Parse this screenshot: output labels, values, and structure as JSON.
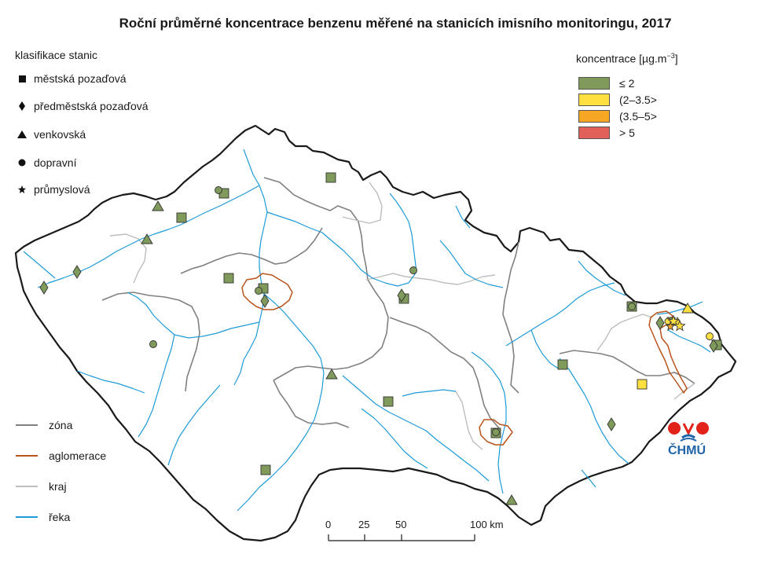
{
  "title": "Roční průměrné koncentrace benzenu měřené na stanicích imisního monitoringu, 2017",
  "station_legend": {
    "heading": "klasifikace stanic",
    "items": [
      {
        "symbol": "square",
        "label": "městská pozaďová"
      },
      {
        "symbol": "diamond",
        "label": "předměstská pozaďová"
      },
      {
        "symbol": "triangle",
        "label": "venkovská"
      },
      {
        "symbol": "circle",
        "label": "dopravní"
      },
      {
        "symbol": "star",
        "label": "průmyslová"
      }
    ]
  },
  "concentration_legend": {
    "heading": "koncentrace [µg.m",
    "heading_sup": "−3",
    "heading_end": "]",
    "classes": [
      {
        "label": "≤ 2",
        "color": "#7f9a5a"
      },
      {
        "label": "(2–3.5>",
        "color": "#ffe040"
      },
      {
        "label": "(3.5–5>",
        "color": "#f5a623"
      },
      {
        "label": "> 5",
        "color": "#e2605a"
      }
    ]
  },
  "line_legend": [
    {
      "label": "zóna",
      "color": "#808080"
    },
    {
      "label": "aglomerace",
      "color": "#b8541c"
    },
    {
      "label": "kraj",
      "color": "#bdbdbd"
    },
    {
      "label": "řeka",
      "color": "#1e9bd7"
    }
  ],
  "scale_bar": {
    "labels": [
      "0",
      "25",
      "50",
      "100 km"
    ]
  },
  "logo": {
    "text": "ČHMÚ"
  },
  "colors": {
    "border": "#1a1a1a",
    "zone": "#808080",
    "agglomeration": "#b8541c",
    "region": "#bdbdbd",
    "river": "#1e9bd7"
  }
}
